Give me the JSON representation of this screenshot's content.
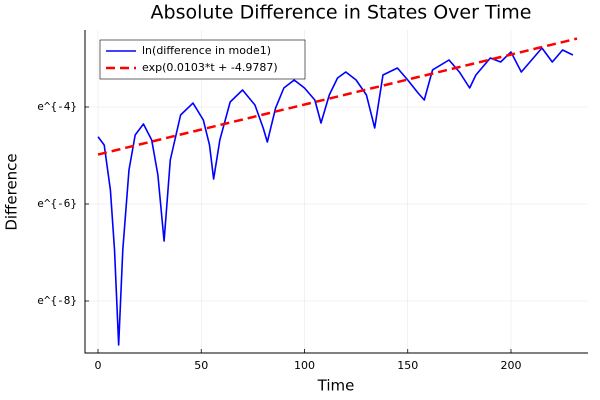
{
  "chart_data": {
    "type": "line",
    "title": "Absolute Difference in States Over Time",
    "xlabel": "Time",
    "ylabel": "Difference",
    "xlim": [
      -6.3,
      237.3
    ],
    "xticks": [
      0,
      50,
      100,
      150,
      200
    ],
    "ylim": [
      0.0001148,
      0.0896
    ],
    "log_scale": true,
    "yticks": [
      {
        "value": 0.000335463,
        "label": "e^{-8}"
      },
      {
        "value": 0.00247875,
        "label": "e^{-6}"
      },
      {
        "value": 0.0183156,
        "label": "e^{-4}"
      }
    ],
    "grid": true,
    "legend": "top left",
    "series": [
      {
        "name": "ln(difference in mode1)",
        "color": "#0000ff",
        "dash": false,
        "x": [
          0,
          3,
          6,
          8,
          10,
          12,
          15,
          18,
          22,
          26,
          29,
          32,
          35,
          40,
          46,
          51,
          54,
          56,
          59,
          64,
          70,
          76,
          80,
          82,
          86,
          90,
          95,
          100,
          105,
          108,
          112,
          116,
          120,
          125,
          130,
          134,
          138,
          145,
          150,
          155,
          158,
          162,
          170,
          175,
          180,
          183,
          190,
          195,
          200,
          205,
          210,
          215,
          220,
          225,
          230
        ],
        "values": [
          0.00991,
          0.00836,
          0.00331,
          0.00096,
          0.0001354,
          0.00096,
          0.005,
          0.01029,
          0.0129,
          0.00928,
          0.00451,
          0.001155,
          0.00614,
          0.01553,
          0.01988,
          0.01401,
          0.00836,
          0.00415,
          0.00928,
          0.0203,
          0.02601,
          0.01908,
          0.01188,
          0.0089,
          0.01793,
          0.0271,
          0.03196,
          0.0271,
          0.02115,
          0.01317,
          0.02345,
          0.0333,
          0.0377,
          0.03196,
          0.02345,
          0.01188,
          0.03543,
          0.04092,
          0.03196,
          0.02445,
          0.02115,
          0.03928,
          0.04827,
          0.0377,
          0.0271,
          0.03543,
          0.05029,
          0.04632,
          0.05693,
          0.0377,
          0.04827,
          0.06178,
          0.04632,
          0.05933,
          0.0535
        ]
      },
      {
        "name": "exp(0.0103*t + -4.9787)",
        "color": "#ff0000",
        "dash": true,
        "x": [
          0,
          232
        ],
        "values": [
          0.006873,
          0.0751
        ]
      }
    ]
  }
}
